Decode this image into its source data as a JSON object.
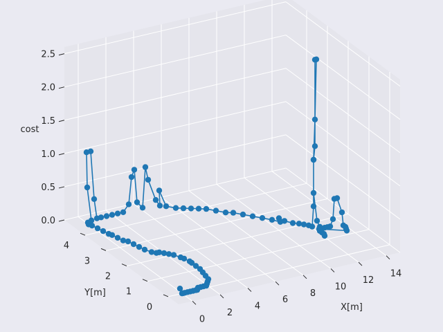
{
  "chart_data": {
    "type": "scatter",
    "projection": "3d",
    "xlabel": "X[m]",
    "ylabel": "Y[m]",
    "zlabel": "cost",
    "xlim": [
      -1,
      15
    ],
    "ylim": [
      -0.5,
      5
    ],
    "zlim": [
      0,
      2.6
    ],
    "x_ticks": [
      "0",
      "2",
      "4",
      "6",
      "8",
      "10",
      "12",
      "14"
    ],
    "y_ticks": [
      "0",
      "1",
      "2",
      "3",
      "4"
    ],
    "z_ticks": [
      "0.0",
      "0.5",
      "1.0",
      "1.5",
      "2.0",
      "2.5"
    ],
    "grid": true,
    "colors": {
      "background": "#eaeaf2",
      "pane": "#e5e5ec",
      "grid": "#ffffff",
      "series": "#1f77b4"
    },
    "series": [
      {
        "points": [
          [
            0.0,
            0.0,
            0.0
          ],
          [
            0.0,
            0.1,
            0.05
          ],
          [
            0.1,
            0.0,
            0.0
          ],
          [
            0.2,
            0.0,
            0.0
          ],
          [
            0.4,
            0.0,
            0.0
          ],
          [
            0.6,
            0.0,
            0.0
          ],
          [
            0.8,
            0.0,
            0.0
          ],
          [
            1.0,
            0.0,
            0.0
          ],
          [
            1.1,
            0.0,
            0.0
          ],
          [
            1.3,
            0.1,
            0.0
          ],
          [
            1.5,
            0.1,
            0.0
          ],
          [
            1.7,
            0.1,
            0.0
          ],
          [
            1.9,
            0.1,
            0.0
          ],
          [
            2.1,
            0.2,
            0.0
          ],
          [
            2.3,
            0.3,
            0.0
          ],
          [
            2.5,
            0.4,
            0.0
          ],
          [
            2.6,
            0.6,
            0.0
          ],
          [
            2.7,
            0.8,
            0.0
          ],
          [
            2.8,
            1.0,
            0.0
          ],
          [
            2.8,
            1.2,
            0.0
          ],
          [
            2.8,
            1.4,
            0.0
          ],
          [
            2.8,
            1.5,
            0.0
          ],
          [
            2.7,
            1.7,
            0.0
          ],
          [
            2.6,
            1.8,
            0.0
          ],
          [
            2.4,
            2.0,
            0.0
          ],
          [
            2.2,
            2.1,
            0.0
          ],
          [
            2.0,
            2.2,
            0.0
          ],
          [
            1.8,
            2.3,
            0.0
          ],
          [
            1.6,
            2.3,
            0.0
          ],
          [
            1.4,
            2.4,
            0.0
          ],
          [
            1.2,
            2.6,
            0.0
          ],
          [
            1.1,
            2.8,
            0.0
          ],
          [
            1.0,
            3.0,
            0.0
          ],
          [
            0.9,
            3.2,
            0.0
          ],
          [
            0.7,
            3.3,
            0.0
          ],
          [
            0.6,
            3.5,
            0.0
          ],
          [
            0.5,
            3.7,
            0.0
          ],
          [
            0.4,
            3.8,
            0.0
          ],
          [
            0.3,
            4.0,
            0.0
          ],
          [
            0.2,
            4.2,
            0.0
          ],
          [
            0.1,
            4.4,
            0.0
          ],
          [
            0.0,
            4.5,
            0.0
          ],
          [
            0.1,
            4.6,
            0.0
          ],
          [
            0.2,
            4.5,
            0.05
          ],
          [
            0.2,
            4.7,
            0.5
          ],
          [
            0.3,
            4.8,
            1.0
          ],
          [
            0.6,
            4.8,
            1.0
          ],
          [
            0.7,
            4.7,
            0.3
          ],
          [
            0.9,
            4.7,
            0.0
          ],
          [
            1.2,
            4.7,
            0.0
          ],
          [
            1.6,
            4.7,
            0.0
          ],
          [
            2.0,
            4.7,
            0.0
          ],
          [
            2.4,
            4.7,
            0.0
          ],
          [
            2.8,
            4.7,
            0.0
          ],
          [
            3.2,
            4.7,
            0.1
          ],
          [
            3.4,
            4.7,
            0.5
          ],
          [
            3.6,
            4.7,
            0.6
          ],
          [
            3.8,
            4.7,
            0.1
          ],
          [
            4.2,
            4.7,
            0.0
          ],
          [
            4.4,
            4.7,
            0.6
          ],
          [
            4.6,
            4.7,
            0.4
          ],
          [
            5.0,
            4.6,
            0.1
          ],
          [
            5.3,
            4.6,
            0.0
          ],
          [
            5.4,
            4.7,
            0.2
          ],
          [
            5.6,
            4.5,
            0.0
          ],
          [
            6.0,
            4.3,
            0.0
          ],
          [
            6.4,
            4.2,
            0.0
          ],
          [
            6.8,
            4.1,
            0.0
          ],
          [
            7.2,
            4.0,
            0.0
          ],
          [
            7.6,
            3.9,
            0.0
          ],
          [
            8.0,
            3.7,
            0.0
          ],
          [
            8.4,
            3.5,
            0.0
          ],
          [
            8.8,
            3.4,
            0.0
          ],
          [
            9.2,
            3.2,
            0.0
          ],
          [
            9.6,
            3.0,
            0.0
          ],
          [
            10.0,
            2.8,
            0.0
          ],
          [
            10.4,
            2.6,
            0.0
          ],
          [
            10.7,
            2.4,
            0.0
          ],
          [
            10.9,
            2.6,
            0.0
          ],
          [
            11.0,
            2.4,
            0.0
          ],
          [
            11.3,
            2.2,
            0.0
          ],
          [
            11.6,
            2.1,
            0.0
          ],
          [
            11.8,
            2.0,
            0.0
          ],
          [
            12.0,
            1.9,
            0.0
          ],
          [
            12.1,
            1.8,
            0.0
          ],
          [
            12.2,
            1.8,
            0.3
          ],
          [
            12.2,
            1.8,
            1.0
          ],
          [
            12.3,
            1.8,
            1.2
          ],
          [
            12.3,
            1.8,
            2.5
          ],
          [
            12.4,
            1.8,
            2.5
          ],
          [
            12.3,
            1.8,
            1.6
          ],
          [
            12.2,
            1.8,
            1.0
          ],
          [
            12.2,
            1.8,
            0.5
          ],
          [
            12.3,
            1.7,
            0.1
          ],
          [
            12.5,
            1.7,
            0.0
          ],
          [
            12.7,
            1.6,
            0.0
          ],
          [
            12.9,
            1.6,
            0.0
          ],
          [
            13.1,
            1.6,
            0.0
          ],
          [
            13.3,
            1.6,
            0.1
          ],
          [
            13.4,
            1.6,
            0.4
          ],
          [
            13.6,
            1.6,
            0.4
          ],
          [
            13.8,
            1.5,
            0.2
          ],
          [
            13.9,
            1.5,
            0.0
          ],
          [
            13.9,
            1.4,
            0.0
          ],
          [
            13.8,
            1.3,
            0.0
          ],
          [
            13.7,
            1.2,
            0.0
          ],
          [
            12.3,
            1.6,
            0.0
          ],
          [
            12.2,
            1.5,
            0.0
          ],
          [
            12.2,
            1.4,
            0.0
          ],
          [
            12.2,
            1.3,
            0.0
          ],
          [
            12.1,
            1.2,
            0.0
          ]
        ]
      }
    ]
  }
}
